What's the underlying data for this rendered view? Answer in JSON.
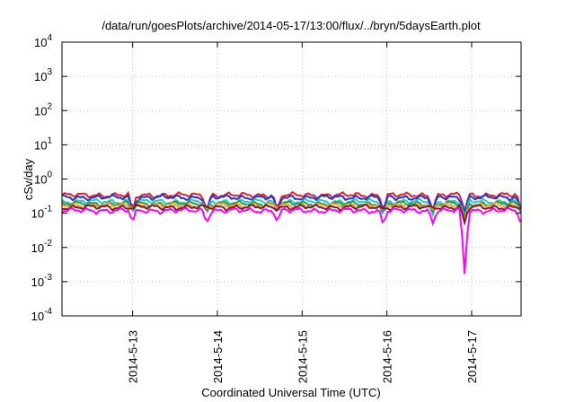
{
  "chart_data": {
    "type": "line",
    "title": "/data/run/goesPlots/archive/2014-05-17/13:00/flux/../bryn/5daysEarth.plot",
    "xlabel": "Coordinated Universal Time (UTC)",
    "ylabel": "cSv/day",
    "yscale": "log",
    "ylim": [
      0.0001,
      10000
    ],
    "xlim": [
      "2014-05-12T04:00",
      "2014-05-17T14:00"
    ],
    "grid": true,
    "legend": "none",
    "y_ticks": [
      {
        "mant": "10",
        "exp": "-4",
        "value": 0.0001
      },
      {
        "mant": "10",
        "exp": "-3",
        "value": 0.001
      },
      {
        "mant": "10",
        "exp": "-2",
        "value": 0.01
      },
      {
        "mant": "10",
        "exp": "-1",
        "value": 0.1
      },
      {
        "mant": "10",
        "exp": "0",
        "value": 1
      },
      {
        "mant": "10",
        "exp": "1",
        "value": 10
      },
      {
        "mant": "10",
        "exp": "2",
        "value": 100
      },
      {
        "mant": "10",
        "exp": "3",
        "value": 1000
      },
      {
        "mant": "10",
        "exp": "4",
        "value": 10000
      }
    ],
    "x_ticks": [
      {
        "label": "2014-5-13",
        "value": "2014-05-13T00:00"
      },
      {
        "label": "2014-5-14",
        "value": "2014-05-14T00:00"
      },
      {
        "label": "2014-5-15",
        "value": "2014-05-15T00:00"
      },
      {
        "label": "2014-5-16",
        "value": "2014-05-16T00:00"
      },
      {
        "label": "2014-5-17",
        "value": "2014-05-17T00:00"
      }
    ],
    "series": [
      {
        "color": "#e8202a",
        "base": 0.34
      },
      {
        "color": "#1f2fe0",
        "base": 0.29
      },
      {
        "color": "#22c8d8",
        "base": 0.22
      },
      {
        "color": "#2e9a3a",
        "base": 0.19
      },
      {
        "color": "#f2a020",
        "base": 0.17
      },
      {
        "color": "#7a1a2a",
        "base": 0.15
      },
      {
        "color": "#ff00ff",
        "base": 0.12
      }
    ],
    "dips": [
      {
        "x": "2014-05-13T00:00",
        "y": 0.055
      },
      {
        "x": "2014-05-13T21:00",
        "y": 0.05
      },
      {
        "x": "2014-05-14T17:00",
        "y": 0.055
      },
      {
        "x": "2014-05-15T23:00",
        "y": 0.045
      },
      {
        "x": "2014-05-16T13:00",
        "y": 0.05
      },
      {
        "x": "2014-05-16T22:00",
        "y": 0.0017
      },
      {
        "x": "2014-05-17T14:00",
        "y": 0.045
      }
    ]
  }
}
